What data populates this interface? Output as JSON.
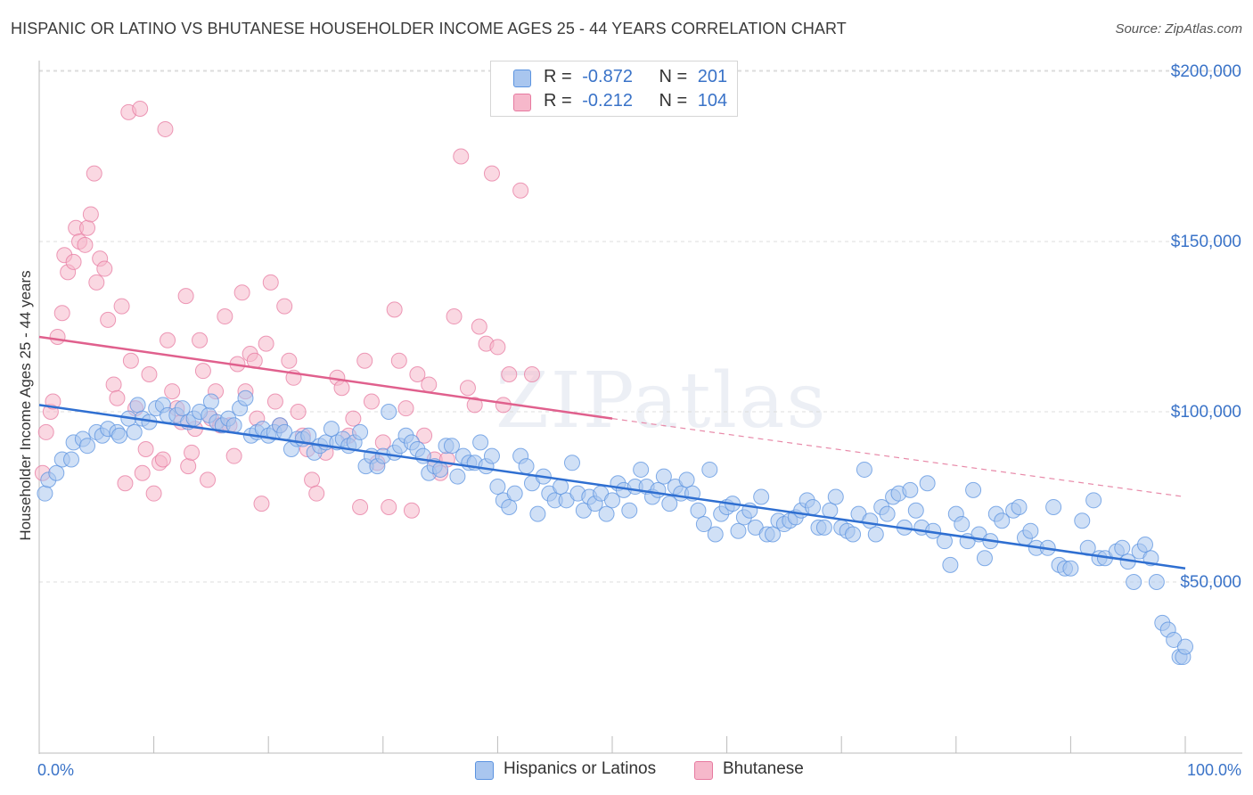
{
  "header": {
    "title": "HISPANIC OR LATINO VS BHUTANESE HOUSEHOLDER INCOME AGES 25 - 44 YEARS CORRELATION CHART",
    "source": "Source: ZipAtlas.com"
  },
  "watermark": "ZIPatlas",
  "legend": {
    "rows": [
      {
        "r_label": "R =",
        "r_value": "-0.872",
        "n_label": "N =",
        "n_value": "201",
        "color": "#a9c6ef"
      },
      {
        "r_label": "R =",
        "r_value": "-0.212",
        "n_label": "N =",
        "n_value": "104",
        "color": "#f6b8cb"
      }
    ]
  },
  "bottom_legend": [
    {
      "label": "Hispanics or Latinos",
      "color": "#a9c6ef"
    },
    {
      "label": "Bhutanese",
      "color": "#f6b8cb"
    }
  ],
  "chart_data": {
    "type": "scatter",
    "title": "HISPANIC OR LATINO VS BHUTANESE HOUSEHOLDER INCOME AGES 25 - 44 YEARS CORRELATION CHART",
    "xlabel": "",
    "ylabel": "Householder Income Ages 25 - 44 years",
    "xlim": [
      0,
      100
    ],
    "ylim": [
      0,
      210000
    ],
    "x_tick_labels": [
      "0.0%",
      "100.0%"
    ],
    "y_ticks": [
      50000,
      100000,
      150000,
      200000
    ],
    "y_tick_labels": [
      "$50,000",
      "$100,000",
      "$150,000",
      "$200,000"
    ],
    "grid": true,
    "legend_position": "top-center",
    "series": [
      {
        "name": "Hispanics or Latinos",
        "color": "#5b93e0",
        "fill": "#a9c6ef",
        "trend": {
          "x0": 0,
          "y0": 102000,
          "x1": 100,
          "y1": 54000,
          "dashed_from": null
        },
        "points": [
          [
            0.5,
            76000
          ],
          [
            0.8,
            80000
          ],
          [
            1.5,
            82000
          ],
          [
            2,
            86000
          ],
          [
            2.8,
            86000
          ],
          [
            3,
            91000
          ],
          [
            3.8,
            92000
          ],
          [
            4.2,
            90000
          ],
          [
            5,
            94000
          ],
          [
            5.5,
            93000
          ],
          [
            6,
            95000
          ],
          [
            6.8,
            94000
          ],
          [
            7,
            93000
          ],
          [
            7.8,
            98000
          ],
          [
            8.3,
            94000
          ],
          [
            8.6,
            102000
          ],
          [
            9,
            98000
          ],
          [
            9.6,
            97000
          ],
          [
            10.2,
            101000
          ],
          [
            10.8,
            102000
          ],
          [
            11.2,
            99000
          ],
          [
            12,
            99000
          ],
          [
            12.5,
            101000
          ],
          [
            13,
            97000
          ],
          [
            13.5,
            98000
          ],
          [
            14,
            100000
          ],
          [
            14.8,
            99000
          ],
          [
            15,
            103000
          ],
          [
            15.5,
            97000
          ],
          [
            16,
            96000
          ],
          [
            16.5,
            98000
          ],
          [
            17,
            96000
          ],
          [
            17.5,
            101000
          ],
          [
            18,
            104000
          ],
          [
            18.5,
            93000
          ],
          [
            19,
            94000
          ],
          [
            19.5,
            95000
          ],
          [
            20,
            93000
          ],
          [
            20.5,
            94000
          ],
          [
            21,
            96000
          ],
          [
            21.4,
            94000
          ],
          [
            22,
            89000
          ],
          [
            22.5,
            92000
          ],
          [
            23,
            92000
          ],
          [
            23.5,
            93000
          ],
          [
            24,
            88000
          ],
          [
            24.5,
            90000
          ],
          [
            25,
            91000
          ],
          [
            25.5,
            95000
          ],
          [
            26,
            91000
          ],
          [
            26.5,
            92000
          ],
          [
            27,
            90000
          ],
          [
            27.5,
            91000
          ],
          [
            28,
            94000
          ],
          [
            28.5,
            84000
          ],
          [
            29,
            87000
          ],
          [
            29.5,
            84000
          ],
          [
            30,
            87000
          ],
          [
            30.5,
            100000
          ],
          [
            31,
            88000
          ],
          [
            31.5,
            90000
          ],
          [
            32,
            93000
          ],
          [
            32.5,
            91000
          ],
          [
            33,
            89000
          ],
          [
            33.5,
            87000
          ],
          [
            34,
            82000
          ],
          [
            34.5,
            84000
          ],
          [
            35,
            83000
          ],
          [
            35.5,
            90000
          ],
          [
            36,
            90000
          ],
          [
            36.5,
            81000
          ],
          [
            37,
            87000
          ],
          [
            37.5,
            85000
          ],
          [
            38,
            85000
          ],
          [
            38.5,
            91000
          ],
          [
            39,
            84000
          ],
          [
            39.5,
            87000
          ],
          [
            40,
            78000
          ],
          [
            40.5,
            74000
          ],
          [
            41,
            72000
          ],
          [
            41.5,
            76000
          ],
          [
            42,
            87000
          ],
          [
            42.5,
            84000
          ],
          [
            43,
            79000
          ],
          [
            43.5,
            70000
          ],
          [
            44,
            81000
          ],
          [
            44.5,
            76000
          ],
          [
            45,
            74000
          ],
          [
            45.5,
            78000
          ],
          [
            46,
            74000
          ],
          [
            46.5,
            85000
          ],
          [
            47,
            76000
          ],
          [
            47.5,
            71000
          ],
          [
            48,
            75000
          ],
          [
            48.5,
            73000
          ],
          [
            49,
            76000
          ],
          [
            49.5,
            70000
          ],
          [
            50,
            74000
          ],
          [
            50.5,
            79000
          ],
          [
            51,
            77000
          ],
          [
            51.5,
            71000
          ],
          [
            52,
            78000
          ],
          [
            52.5,
            83000
          ],
          [
            53,
            78000
          ],
          [
            53.5,
            75000
          ],
          [
            54,
            77000
          ],
          [
            54.5,
            81000
          ],
          [
            55,
            73000
          ],
          [
            55.5,
            78000
          ],
          [
            56,
            76000
          ],
          [
            56.5,
            80000
          ],
          [
            57,
            76000
          ],
          [
            57.5,
            71000
          ],
          [
            58,
            67000
          ],
          [
            58.5,
            83000
          ],
          [
            59,
            64000
          ],
          [
            59.5,
            70000
          ],
          [
            60,
            72000
          ],
          [
            60.5,
            73000
          ],
          [
            61,
            65000
          ],
          [
            61.5,
            69000
          ],
          [
            62,
            71000
          ],
          [
            62.5,
            66000
          ],
          [
            63,
            75000
          ],
          [
            63.5,
            64000
          ],
          [
            64,
            64000
          ],
          [
            64.5,
            68000
          ],
          [
            65,
            67000
          ],
          [
            65.5,
            68000
          ],
          [
            66,
            69000
          ],
          [
            66.5,
            71000
          ],
          [
            67,
            74000
          ],
          [
            67.5,
            72000
          ],
          [
            68,
            66000
          ],
          [
            68.5,
            66000
          ],
          [
            69,
            71000
          ],
          [
            69.5,
            75000
          ],
          [
            70,
            66000
          ],
          [
            70.5,
            65000
          ],
          [
            71,
            64000
          ],
          [
            71.5,
            70000
          ],
          [
            72,
            83000
          ],
          [
            72.5,
            68000
          ],
          [
            73,
            64000
          ],
          [
            73.5,
            72000
          ],
          [
            74,
            70000
          ],
          [
            74.5,
            75000
          ],
          [
            75,
            76000
          ],
          [
            75.5,
            66000
          ],
          [
            76,
            77000
          ],
          [
            76.5,
            71000
          ],
          [
            77,
            66000
          ],
          [
            77.5,
            79000
          ],
          [
            78,
            65000
          ],
          [
            79,
            62000
          ],
          [
            79.5,
            55000
          ],
          [
            80,
            70000
          ],
          [
            80.5,
            67000
          ],
          [
            81,
            62000
          ],
          [
            81.5,
            77000
          ],
          [
            82,
            64000
          ],
          [
            82.5,
            57000
          ],
          [
            83,
            62000
          ],
          [
            83.5,
            70000
          ],
          [
            84,
            68000
          ],
          [
            85,
            71000
          ],
          [
            85.5,
            72000
          ],
          [
            86,
            63000
          ],
          [
            86.5,
            65000
          ],
          [
            87,
            60000
          ],
          [
            88,
            60000
          ],
          [
            88.5,
            72000
          ],
          [
            89,
            55000
          ],
          [
            89.5,
            54000
          ],
          [
            90,
            54000
          ],
          [
            91,
            68000
          ],
          [
            91.5,
            60000
          ],
          [
            92,
            74000
          ],
          [
            92.5,
            57000
          ],
          [
            93,
            57000
          ],
          [
            94,
            59000
          ],
          [
            94.5,
            60000
          ],
          [
            95,
            56000
          ],
          [
            95.5,
            50000
          ],
          [
            96,
            59000
          ],
          [
            96.5,
            61000
          ],
          [
            97,
            57000
          ],
          [
            97.5,
            50000
          ],
          [
            98,
            38000
          ],
          [
            98.5,
            36000
          ],
          [
            99,
            33000
          ],
          [
            99.5,
            28000
          ],
          [
            99.8,
            28000
          ],
          [
            100,
            31000
          ]
        ]
      },
      {
        "name": "Bhutanese",
        "color": "#e77aa0",
        "fill": "#f6b8cb",
        "trend": {
          "x0": 0,
          "y0": 122000,
          "x1": 50,
          "y1": 98000,
          "dashed_to_x": 100,
          "dashed_to_y": 75000
        },
        "points": [
          [
            0.3,
            82000
          ],
          [
            0.6,
            94000
          ],
          [
            1,
            100000
          ],
          [
            1.2,
            103000
          ],
          [
            1.6,
            122000
          ],
          [
            2,
            129000
          ],
          [
            2.2,
            146000
          ],
          [
            2.5,
            141000
          ],
          [
            3,
            144000
          ],
          [
            3.2,
            154000
          ],
          [
            3.5,
            150000
          ],
          [
            4,
            149000
          ],
          [
            4.2,
            154000
          ],
          [
            4.5,
            158000
          ],
          [
            4.8,
            170000
          ],
          [
            5,
            138000
          ],
          [
            5.3,
            145000
          ],
          [
            5.7,
            142000
          ],
          [
            6,
            127000
          ],
          [
            6.5,
            108000
          ],
          [
            6.8,
            104000
          ],
          [
            7.2,
            131000
          ],
          [
            7.5,
            79000
          ],
          [
            7.8,
            188000
          ],
          [
            8,
            115000
          ],
          [
            8.4,
            101000
          ],
          [
            8.8,
            189000
          ],
          [
            9,
            82000
          ],
          [
            9.3,
            89000
          ],
          [
            9.6,
            111000
          ],
          [
            10,
            76000
          ],
          [
            10.5,
            85000
          ],
          [
            10.8,
            86000
          ],
          [
            11,
            183000
          ],
          [
            11.2,
            121000
          ],
          [
            11.6,
            106000
          ],
          [
            12,
            101000
          ],
          [
            12.4,
            97000
          ],
          [
            12.8,
            134000
          ],
          [
            13,
            84000
          ],
          [
            13.3,
            88000
          ],
          [
            13.6,
            95000
          ],
          [
            14,
            121000
          ],
          [
            14.3,
            112000
          ],
          [
            14.7,
            80000
          ],
          [
            15,
            98000
          ],
          [
            15.4,
            106000
          ],
          [
            15.8,
            96000
          ],
          [
            16.2,
            128000
          ],
          [
            16.6,
            96000
          ],
          [
            17,
            87000
          ],
          [
            17.3,
            114000
          ],
          [
            17.7,
            135000
          ],
          [
            18,
            106000
          ],
          [
            18.4,
            117000
          ],
          [
            18.8,
            115000
          ],
          [
            19,
            98000
          ],
          [
            19.4,
            73000
          ],
          [
            19.8,
            120000
          ],
          [
            20.2,
            138000
          ],
          [
            20.6,
            103000
          ],
          [
            21,
            96000
          ],
          [
            21.4,
            131000
          ],
          [
            21.8,
            115000
          ],
          [
            22.2,
            110000
          ],
          [
            22.6,
            100000
          ],
          [
            23,
            93000
          ],
          [
            23.4,
            89000
          ],
          [
            23.8,
            80000
          ],
          [
            24.2,
            76000
          ],
          [
            25,
            88000
          ],
          [
            26,
            110000
          ],
          [
            26.4,
            107000
          ],
          [
            27,
            93000
          ],
          [
            27.4,
            98000
          ],
          [
            28,
            72000
          ],
          [
            28.4,
            115000
          ],
          [
            29,
            103000
          ],
          [
            29.5,
            85000
          ],
          [
            30,
            91000
          ],
          [
            30.5,
            72000
          ],
          [
            31,
            130000
          ],
          [
            31.4,
            115000
          ],
          [
            32,
            101000
          ],
          [
            32.5,
            71000
          ],
          [
            33,
            111000
          ],
          [
            33.6,
            93000
          ],
          [
            34,
            108000
          ],
          [
            34.5,
            86000
          ],
          [
            35,
            82000
          ],
          [
            35.6,
            86000
          ],
          [
            36.2,
            128000
          ],
          [
            36.8,
            175000
          ],
          [
            37.4,
            107000
          ],
          [
            38,
            102000
          ],
          [
            38.4,
            125000
          ],
          [
            39,
            120000
          ],
          [
            39.5,
            170000
          ],
          [
            40,
            119000
          ],
          [
            40.5,
            102000
          ],
          [
            41,
            111000
          ],
          [
            42,
            165000
          ],
          [
            43,
            111000
          ]
        ]
      }
    ]
  }
}
